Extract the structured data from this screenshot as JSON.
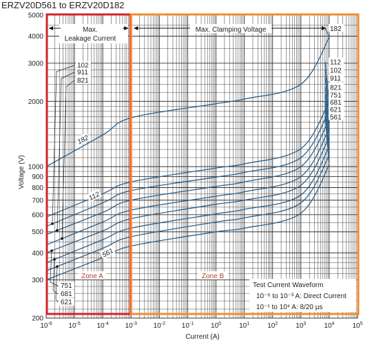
{
  "chart_data": {
    "type": "line",
    "title": "ERZV20D561  to  ERZV20D182",
    "xlabel": "Current (A)",
    "ylabel": "Voltage (V)",
    "xscale": "log",
    "yscale": "log",
    "xlim": [
      1e-06,
      100000.0
    ],
    "ylim": [
      200,
      5000
    ],
    "grid": true,
    "x_ticks": [
      {
        "v": 1e-06,
        "b": "10",
        "e": "-6"
      },
      {
        "v": 1e-05,
        "b": "10",
        "e": "-5"
      },
      {
        "v": 0.0001,
        "b": "10",
        "e": "-4"
      },
      {
        "v": 0.001,
        "b": "10",
        "e": "-3"
      },
      {
        "v": 0.01,
        "b": "10",
        "e": "-2"
      },
      {
        "v": 0.1,
        "b": "10",
        "e": "-1"
      },
      {
        "v": 1,
        "b": "10",
        "e": "0"
      },
      {
        "v": 10,
        "b": "10",
        "e": "1"
      },
      {
        "v": 100,
        "b": "10",
        "e": "2"
      },
      {
        "v": 1000,
        "b": "10",
        "e": "3"
      },
      {
        "v": 10000,
        "b": "10",
        "e": "4"
      },
      {
        "v": 100000,
        "b": "10",
        "e": "5"
      }
    ],
    "y_ticks": [
      {
        "v": 5000,
        "t": "5000"
      },
      {
        "v": 4000,
        "t": "4000"
      },
      {
        "v": 3000,
        "t": "3000"
      },
      {
        "v": 2000,
        "t": "2000"
      },
      {
        "v": 1000,
        "t": "1000"
      },
      {
        "v": 900,
        "t": "900"
      },
      {
        "v": 800,
        "t": "800"
      },
      {
        "v": 700,
        "t": "700"
      },
      {
        "v": 600,
        "t": "600"
      },
      {
        "v": 500,
        "t": "500"
      },
      {
        "v": 400,
        "t": "400"
      },
      {
        "v": 300,
        "t": "300"
      },
      {
        "v": 200,
        "t": "200"
      }
    ],
    "series": [
      {
        "name": "561",
        "x": [
          1e-06,
          0.0001,
          0.001,
          1,
          10,
          1000,
          10000
        ],
        "y": [
          300,
          380,
          430,
          500,
          520,
          610,
          1020
        ]
      },
      {
        "name": "621",
        "x": [
          1e-06,
          0.0001,
          0.001,
          1,
          10,
          1000,
          10000
        ],
        "y": [
          330,
          420,
          475,
          555,
          580,
          680,
          1130
        ]
      },
      {
        "name": "681",
        "x": [
          1e-06,
          0.0001,
          0.001,
          1,
          10,
          1000,
          10000
        ],
        "y": [
          360,
          460,
          520,
          605,
          635,
          740,
          1240
        ]
      },
      {
        "name": "751",
        "x": [
          1e-06,
          0.0001,
          0.001,
          1,
          10,
          1000,
          10000
        ],
        "y": [
          400,
          505,
          575,
          670,
          700,
          820,
          1370
        ]
      },
      {
        "name": "821",
        "x": [
          1e-06,
          0.0001,
          0.001,
          1,
          10,
          1000,
          10000
        ],
        "y": [
          435,
          555,
          630,
          730,
          765,
          900,
          1500
        ]
      },
      {
        "name": "911",
        "x": [
          1e-06,
          0.0001,
          0.001,
          1,
          10,
          1000,
          10000
        ],
        "y": [
          485,
          615,
          700,
          810,
          850,
          1000,
          1650
        ]
      },
      {
        "name": "102",
        "x": [
          1e-06,
          0.0001,
          0.001,
          1,
          10,
          1000,
          10000
        ],
        "y": [
          530,
          680,
          775,
          895,
          940,
          1100,
          1820
        ]
      },
      {
        "name": "112",
        "x": [
          1e-06,
          0.0001,
          0.001,
          1,
          10,
          1000,
          10000
        ],
        "y": [
          585,
          750,
          850,
          985,
          1030,
          1210,
          2000
        ]
      },
      {
        "name": "182",
        "x": [
          1e-06,
          0.0001,
          0.001,
          1,
          10,
          1000,
          10000
        ],
        "y": [
          1000,
          1400,
          1680,
          1950,
          2050,
          2400,
          3950
        ]
      }
    ],
    "right_labels": [
      {
        "name": "182",
        "y": 4350
      },
      {
        "name": "112",
        "y": 3050
      },
      {
        "name": "102",
        "y": 2800
      },
      {
        "name": "911",
        "y": 2570
      },
      {
        "name": "821",
        "y": 2330
      },
      {
        "name": "751",
        "y": 2150
      },
      {
        "name": "681",
        "y": 1990
      },
      {
        "name": "621",
        "y": 1840
      },
      {
        "name": "561",
        "y": 1700
      }
    ],
    "inline_labels": [
      {
        "text": "182",
        "x": 2e-05,
        "y": 1330
      },
      {
        "text": "112",
        "x": 5e-05,
        "y": 730
      },
      {
        "text": "561",
        "x": 0.00015,
        "y": 400
      }
    ],
    "top_left_labels": [
      "102",
      "911",
      "821"
    ],
    "bottom_left_labels": [
      "751",
      "681",
      "621"
    ],
    "annotations": {
      "leakage_line1": "Max.",
      "leakage_line2": "Leakage Current",
      "clamping": "Max. Clamping Voltage",
      "zone_a": "Zone A",
      "zone_b": "Zone B",
      "waveform_title": "Test Current Waveform",
      "waveform_dc": "10⁻⁶ to 10⁻³ A: Direct Current",
      "waveform_pulse": "10⁻¹ to 10⁴ A:  8/20 µs"
    },
    "colors": {
      "curve": "#2a5f8a",
      "zone_a_box": "#d6202a",
      "zone_b_box": "#f28a2e",
      "zone_label": "#c0392b",
      "grid": "#333333",
      "text": "#222222"
    }
  }
}
